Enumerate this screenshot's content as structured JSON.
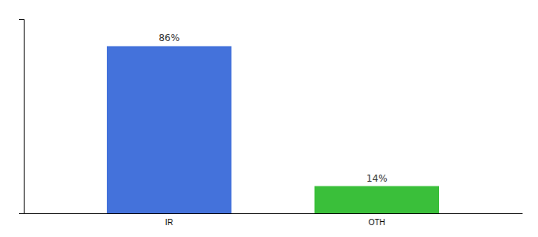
{
  "chart_data": {
    "type": "bar",
    "categories": [
      "IR",
      "OTH"
    ],
    "values": [
      86,
      14
    ],
    "value_labels": [
      "86%",
      "14%"
    ],
    "colors": [
      "#4472db",
      "#3abf3a"
    ],
    "ylim": [
      0,
      100
    ],
    "yticks": [],
    "data_labels": true,
    "tick_labels": "x"
  }
}
